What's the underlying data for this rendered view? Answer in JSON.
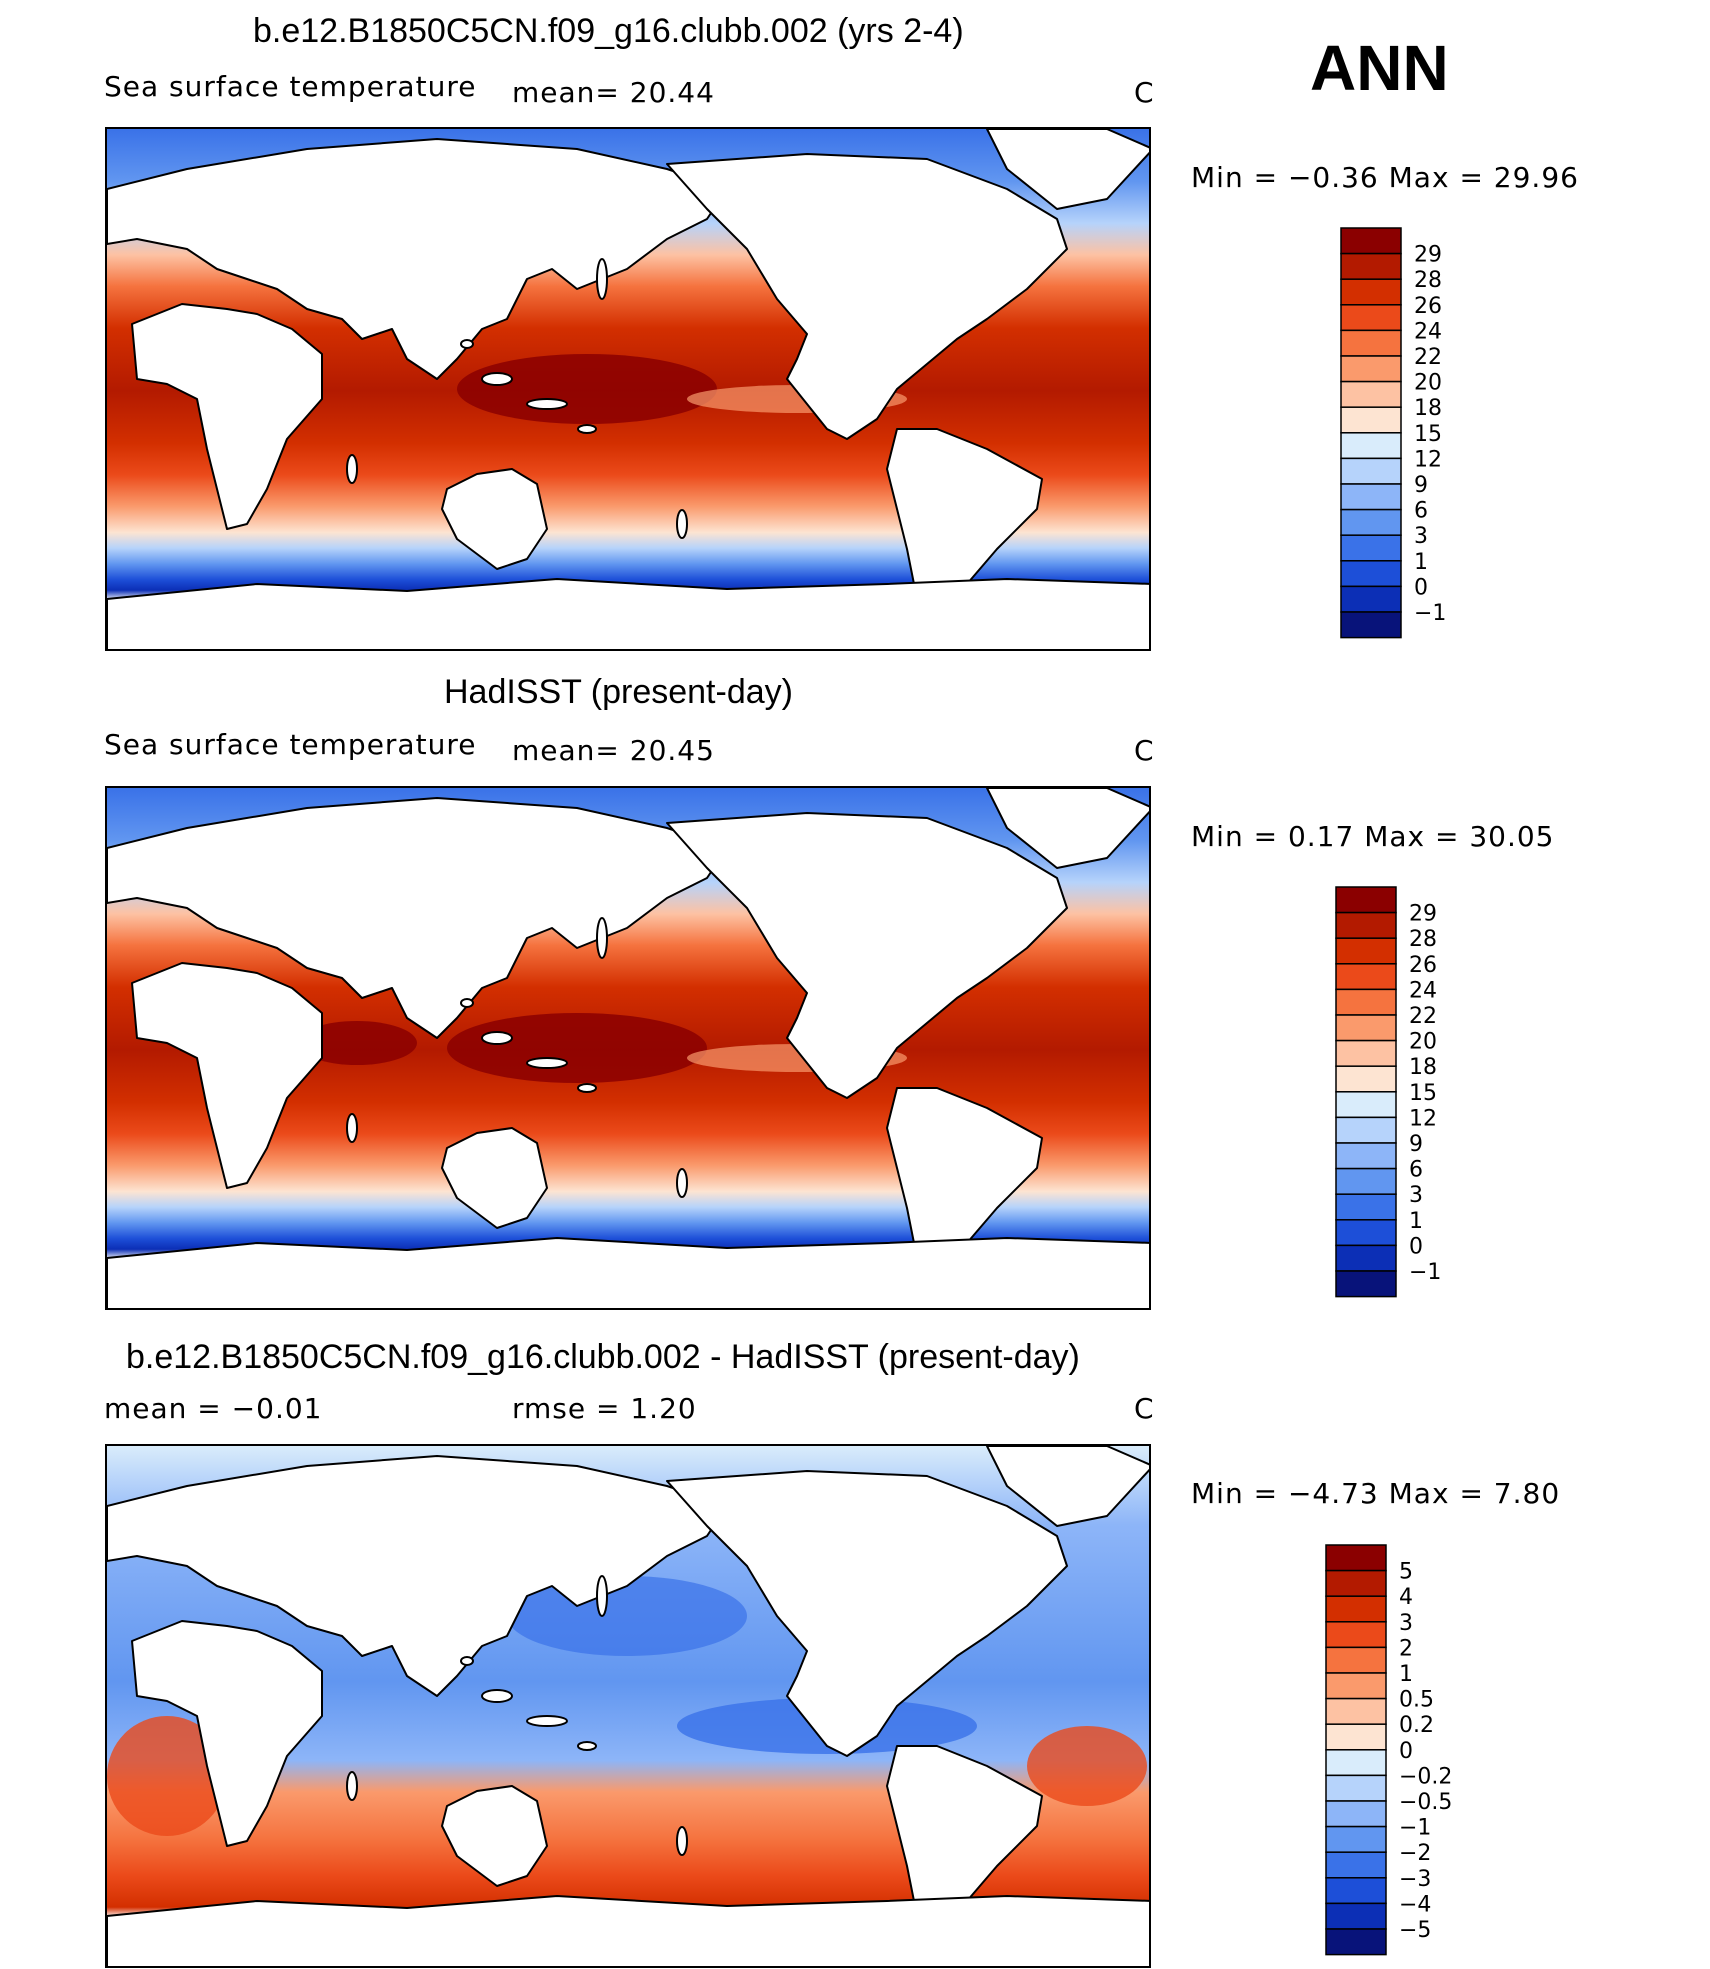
{
  "season": "ANN",
  "panels": [
    {
      "title": "b.e12.B1850C5CN.f09_g16.clubb.002 (yrs 2-4)",
      "left_label": "Sea surface temperature",
      "stat1": "mean=   20.44",
      "stat2": "",
      "units": "C",
      "minmax": "Min =   −0.36  Max =    29.96"
    },
    {
      "title": "HadISST (present-day)",
      "left_label": "Sea surface temperature",
      "stat1": "mean=   20.45",
      "stat2": "",
      "units": "C",
      "minmax": "Min =    0.17  Max =    30.05"
    },
    {
      "title": "b.e12.B1850C5CN.f09_g16.clubb.002 - HadISST (present-day)",
      "left_label": "mean  =    −0.01",
      "stat1": "rmse  =     1.20",
      "stat2": "",
      "units": "C",
      "minmax": "Min =   −4.73  Max =     7.80"
    }
  ],
  "chart_data": [
    {
      "type": "heatmap",
      "title": "b.e12.B1850C5CN.f09_g16.clubb.002 (yrs 2-4)",
      "variable": "Sea surface temperature",
      "units": "C",
      "mean": 20.44,
      "min": -0.36,
      "max": 29.96,
      "colorbar_levels": [
        "29",
        "28",
        "26",
        "24",
        "22",
        "20",
        "18",
        "15",
        "12",
        "9",
        "6",
        "3",
        "1",
        "0",
        "−1"
      ],
      "colorbar_colors": [
        "#8b0000",
        "#b31a00",
        "#d32f00",
        "#eb4a1a",
        "#f5733f",
        "#fa9a6c",
        "#fdc2a3",
        "#fde4d2",
        "#d9ecfb",
        "#b6d3fb",
        "#8db5f8",
        "#6196f0",
        "#3a72e8",
        "#1d4fd8",
        "#0c2fb6",
        "#08137a"
      ]
    },
    {
      "type": "heatmap",
      "title": "HadISST (present-day)",
      "variable": "Sea surface temperature",
      "units": "C",
      "mean": 20.45,
      "min": 0.17,
      "max": 30.05,
      "colorbar_levels": [
        "29",
        "28",
        "26",
        "24",
        "22",
        "20",
        "18",
        "15",
        "12",
        "9",
        "6",
        "3",
        "1",
        "0",
        "−1"
      ],
      "colorbar_colors": [
        "#8b0000",
        "#b31a00",
        "#d32f00",
        "#eb4a1a",
        "#f5733f",
        "#fa9a6c",
        "#fdc2a3",
        "#fde4d2",
        "#d9ecfb",
        "#b6d3fb",
        "#8db5f8",
        "#6196f0",
        "#3a72e8",
        "#1d4fd8",
        "#0c2fb6",
        "#08137a"
      ]
    },
    {
      "type": "heatmap",
      "title": "b.e12.B1850C5CN.f09_g16.clubb.002 - HadISST (present-day)",
      "units": "C",
      "mean": -0.01,
      "rmse": 1.2,
      "min": -4.73,
      "max": 7.8,
      "colorbar_levels": [
        "5",
        "4",
        "3",
        "2",
        "1",
        "0.5",
        "0.2",
        "0",
        "−0.2",
        "−0.5",
        "−1",
        "−2",
        "−3",
        "−4",
        "−5"
      ],
      "colorbar_colors": [
        "#8b0000",
        "#b31a00",
        "#d32f00",
        "#eb4a1a",
        "#f5733f",
        "#fa9a6c",
        "#fdc2a3",
        "#fde4d2",
        "#d9ecfb",
        "#b6d3fb",
        "#8db5f8",
        "#6196f0",
        "#3a72e8",
        "#1d4fd8",
        "#0c2fb6",
        "#08137a"
      ]
    }
  ]
}
